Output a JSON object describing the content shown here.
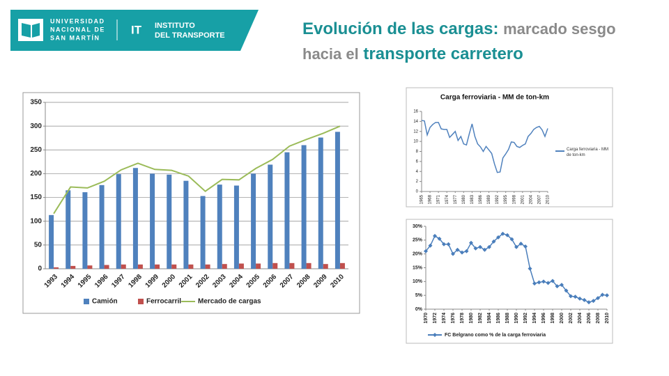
{
  "header": {
    "university": [
      "UNIVERSIDAD",
      "NACIONAL DE",
      "SAN MARTÍN"
    ],
    "institute_abbr": "IT",
    "institute": [
      "INSTITUTO",
      "DEL TRANSPORTE"
    ],
    "title": [
      "Evolución de las cargas:",
      "marcado sesgo",
      "hacia el",
      "transporte carretero"
    ]
  },
  "chart_data": [
    {
      "type": "bar",
      "categories": [
        "1993",
        "1994",
        "1995",
        "1996",
        "1997",
        "1998",
        "1999",
        "2000",
        "2001",
        "2002",
        "2003",
        "2004",
        "2005",
        "2006",
        "2007",
        "2008",
        "2009",
        "2010"
      ],
      "series": [
        {
          "name": "Camión",
          "color": "#4f81bd",
          "values": [
            113,
            165,
            161,
            176,
            199,
            212,
            200,
            198,
            185,
            153,
            177,
            175,
            200,
            219,
            245,
            260,
            276,
            288
          ]
        },
        {
          "name": "Ferrocarril",
          "color": "#c0504d",
          "values": [
            3,
            6,
            7,
            8,
            9,
            9,
            9,
            9,
            9,
            9,
            10,
            11,
            11,
            12,
            12,
            12,
            10,
            12
          ]
        },
        {
          "name": "Mercado de cargas",
          "color": "#9bbb59",
          "type": "line",
          "values": [
            116,
            172,
            170,
            184,
            208,
            222,
            209,
            207,
            195,
            163,
            188,
            187,
            211,
            230,
            258,
            272,
            285,
            300
          ]
        }
      ],
      "ylim": [
        0,
        350
      ],
      "yticks": [
        0,
        50,
        100,
        150,
        200,
        250,
        300,
        350
      ],
      "grid": true,
      "legend": "bottom"
    },
    {
      "type": "line",
      "title": "Carga ferroviaria - MM de ton-km",
      "x": [
        1965,
        1966,
        1967,
        1968,
        1969,
        1970,
        1971,
        1972,
        1973,
        1974,
        1975,
        1976,
        1977,
        1978,
        1979,
        1980,
        1981,
        1982,
        1983,
        1984,
        1985,
        1986,
        1987,
        1988,
        1989,
        1990,
        1991,
        1992,
        1993,
        1994,
        1995,
        1996,
        1997,
        1998,
        1999,
        2000,
        2001,
        2002,
        2003,
        2004,
        2005,
        2006,
        2007,
        2008,
        2009,
        2010
      ],
      "series": [
        {
          "name": "Carga ferroviaria - MM de ton-km",
          "color": "#4f81bd",
          "values": [
            14.2,
            14.1,
            11.3,
            12.8,
            13.4,
            13.8,
            13.8,
            12.5,
            12.4,
            12.4,
            10.8,
            11.4,
            12.0,
            10.2,
            11.0,
            9.5,
            9.3,
            11.5,
            13.5,
            11.0,
            9.5,
            8.9,
            8.0,
            9.0,
            8.3,
            7.6,
            5.5,
            3.8,
            3.9,
            6.7,
            7.5,
            8.4,
            9.9,
            9.8,
            9.0,
            8.8,
            9.2,
            9.5,
            11.0,
            11.6,
            12.4,
            12.8,
            13.0,
            12.3,
            11.0,
            12.6
          ]
        }
      ],
      "xlim": [
        1965,
        2010
      ],
      "xticks": [
        1965,
        1968,
        1971,
        1974,
        1977,
        1980,
        1983,
        1986,
        1989,
        1992,
        1995,
        1998,
        2001,
        2004,
        2007,
        2010
      ],
      "ylim": [
        0,
        16
      ],
      "yticks": [
        0,
        2,
        4,
        6,
        8,
        10,
        12,
        14,
        16
      ],
      "grid": false,
      "legend": "right"
    },
    {
      "type": "line",
      "x": [
        1970,
        1971,
        1972,
        1973,
        1974,
        1975,
        1976,
        1977,
        1978,
        1979,
        1980,
        1981,
        1982,
        1983,
        1984,
        1985,
        1986,
        1987,
        1988,
        1989,
        1990,
        1991,
        1992,
        1993,
        1994,
        1995,
        1996,
        1997,
        1998,
        1999,
        2000,
        2001,
        2002,
        2003,
        2004,
        2005,
        2006,
        2007,
        2008,
        2009,
        2010
      ],
      "series": [
        {
          "name": "FC Belgrano como % de la carga ferroviaria",
          "color": "#4a7ebb",
          "marker": "diamond",
          "values": [
            21,
            23,
            26.5,
            25.5,
            23.5,
            23.5,
            20,
            21.5,
            20.5,
            21,
            24,
            22,
            22.5,
            21.5,
            22.5,
            24.5,
            26,
            27.3,
            26.8,
            25.3,
            22.5,
            23.7,
            22.7,
            14.7,
            9.3,
            9.7,
            10,
            9.5,
            10.2,
            8.3,
            8.8,
            6.7,
            4.7,
            4.5,
            3.8,
            3.3,
            2.5,
            3,
            4,
            5.2,
            5
          ]
        }
      ],
      "xlim": [
        1970,
        2010
      ],
      "xticks": [
        1970,
        1972,
        1974,
        1976,
        1978,
        1980,
        1982,
        1984,
        1986,
        1988,
        1990,
        1992,
        1994,
        1996,
        1998,
        2000,
        2002,
        2004,
        2006,
        2008,
        2010
      ],
      "ylim": [
        0,
        30
      ],
      "yticks": [
        {
          "value": 0,
          "label": "0%"
        },
        {
          "value": 5,
          "label": "5%"
        },
        {
          "value": 10,
          "label": "10%"
        },
        {
          "value": 15,
          "label": "15%"
        },
        {
          "value": 20,
          "label": "20%"
        },
        {
          "value": 25,
          "label": "25%"
        },
        {
          "value": 30,
          "label": "30%"
        }
      ],
      "grid": false,
      "legend": "bottom"
    }
  ]
}
